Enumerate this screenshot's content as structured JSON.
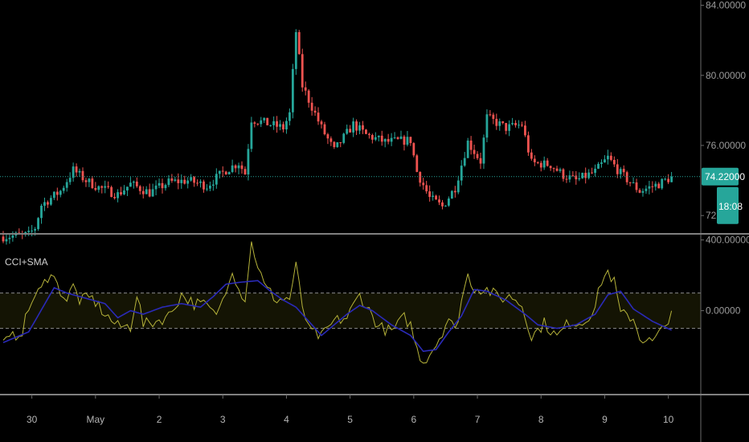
{
  "colors": {
    "background": "#000000",
    "bullish": "#26a69a",
    "bearish": "#ef5350",
    "cci_line": "#b5b23a",
    "sma_line": "#2a2ab8",
    "band_fill": "#141404",
    "price_line": "#26a69a",
    "divider": "#808080"
  },
  "indicator_title": "CCI+SMA",
  "price_badge": {
    "price": "74.22000",
    "countdown": "18:08"
  },
  "chart_data": [
    {
      "type": "candlestick",
      "title": "",
      "price_axis": {
        "min": 71.0,
        "max": 84.3,
        "ticks": [
          {
            "value": 84,
            "label": "84.00000"
          },
          {
            "value": 80,
            "label": "80.00000"
          },
          {
            "value": 76,
            "label": "76.00000"
          },
          {
            "value": 72,
            "label": "72.0"
          }
        ]
      },
      "last_price": 74.22,
      "anchors": [
        [
          0,
          70.8
        ],
        [
          8,
          70.9
        ],
        [
          10,
          71.3
        ],
        [
          12,
          72.6
        ],
        [
          18,
          73.4
        ],
        [
          22,
          74.6
        ],
        [
          26,
          74.0
        ],
        [
          30,
          73.6
        ],
        [
          36,
          73.2
        ],
        [
          40,
          73.8
        ],
        [
          46,
          73.3
        ],
        [
          52,
          73.9
        ],
        [
          58,
          74.0
        ],
        [
          64,
          73.7
        ],
        [
          70,
          74.6
        ],
        [
          74,
          75.0
        ],
        [
          76,
          74.4
        ],
        [
          78,
          77.5
        ],
        [
          84,
          77.2
        ],
        [
          88,
          77.0
        ],
        [
          90,
          77.8
        ],
        [
          92,
          82.5
        ],
        [
          94,
          79.4
        ],
        [
          100,
          77.0
        ],
        [
          104,
          75.7
        ],
        [
          110,
          77.2
        ],
        [
          114,
          76.6
        ],
        [
          120,
          76.2
        ],
        [
          128,
          76.3
        ],
        [
          130,
          74.5
        ],
        [
          134,
          73.0
        ],
        [
          138,
          72.5
        ],
        [
          142,
          73.6
        ],
        [
          146,
          76.2
        ],
        [
          150,
          75.1
        ],
        [
          152,
          77.6
        ],
        [
          158,
          77.0
        ],
        [
          163,
          77.2
        ],
        [
          166,
          75.0
        ],
        [
          172,
          74.9
        ],
        [
          176,
          74.3
        ],
        [
          180,
          74.0
        ],
        [
          186,
          74.5
        ],
        [
          190,
          75.3
        ],
        [
          194,
          74.4
        ],
        [
          200,
          73.4
        ],
        [
          206,
          73.8
        ],
        [
          210,
          74.2
        ]
      ]
    },
    {
      "type": "line",
      "title": "CCI+SMA",
      "y_axis": {
        "min": -470,
        "max": 430,
        "ticks": [
          {
            "value": 400,
            "label": "400.00000"
          },
          {
            "value": 0,
            "label": "0.00000"
          }
        ]
      },
      "bands": {
        "upper": 100,
        "lower": -100
      },
      "cci_anchors": [
        [
          0,
          -190
        ],
        [
          6,
          -110
        ],
        [
          9,
          60
        ],
        [
          12,
          120
        ],
        [
          15,
          230
        ],
        [
          17,
          140
        ],
        [
          20,
          60
        ],
        [
          22,
          140
        ],
        [
          24,
          60
        ],
        [
          28,
          70
        ],
        [
          32,
          -20
        ],
        [
          36,
          -90
        ],
        [
          40,
          -90
        ],
        [
          42,
          100
        ],
        [
          44,
          -80
        ],
        [
          48,
          -60
        ],
        [
          52,
          -30
        ],
        [
          56,
          90
        ],
        [
          60,
          40
        ],
        [
          64,
          30
        ],
        [
          66,
          -20
        ],
        [
          68,
          10
        ],
        [
          70,
          130
        ],
        [
          72,
          240
        ],
        [
          74,
          120
        ],
        [
          76,
          70
        ],
        [
          78,
          380
        ],
        [
          82,
          140
        ],
        [
          86,
          60
        ],
        [
          90,
          70
        ],
        [
          92,
          250
        ],
        [
          94,
          30
        ],
        [
          96,
          -110
        ],
        [
          100,
          -150
        ],
        [
          104,
          -60
        ],
        [
          108,
          -40
        ],
        [
          112,
          90
        ],
        [
          114,
          30
        ],
        [
          118,
          -90
        ],
        [
          122,
          -120
        ],
        [
          126,
          -40
        ],
        [
          128,
          -80
        ],
        [
          130,
          -220
        ],
        [
          132,
          -290
        ],
        [
          136,
          -190
        ],
        [
          140,
          -40
        ],
        [
          142,
          -120
        ],
        [
          144,
          60
        ],
        [
          146,
          200
        ],
        [
          148,
          130
        ],
        [
          152,
          120
        ],
        [
          156,
          70
        ],
        [
          160,
          80
        ],
        [
          163,
          30
        ],
        [
          165,
          -80
        ],
        [
          166,
          -150
        ],
        [
          170,
          -70
        ],
        [
          174,
          -150
        ],
        [
          178,
          -60
        ],
        [
          182,
          -70
        ],
        [
          186,
          20
        ],
        [
          188,
          170
        ],
        [
          190,
          220
        ],
        [
          192,
          160
        ],
        [
          194,
          -20
        ],
        [
          198,
          -40
        ],
        [
          200,
          -150
        ],
        [
          204,
          -180
        ],
        [
          208,
          -90
        ],
        [
          210,
          10
        ]
      ],
      "sma_anchors": [
        [
          0,
          -180
        ],
        [
          8,
          -120
        ],
        [
          16,
          130
        ],
        [
          20,
          100
        ],
        [
          26,
          70
        ],
        [
          32,
          40
        ],
        [
          36,
          -40
        ],
        [
          40,
          0
        ],
        [
          44,
          -20
        ],
        [
          50,
          20
        ],
        [
          56,
          40
        ],
        [
          62,
          20
        ],
        [
          66,
          80
        ],
        [
          70,
          150
        ],
        [
          74,
          160
        ],
        [
          80,
          170
        ],
        [
          84,
          110
        ],
        [
          88,
          60
        ],
        [
          92,
          20
        ],
        [
          96,
          -60
        ],
        [
          100,
          -140
        ],
        [
          104,
          -80
        ],
        [
          108,
          -20
        ],
        [
          112,
          30
        ],
        [
          116,
          0
        ],
        [
          122,
          -80
        ],
        [
          128,
          -140
        ],
        [
          132,
          -230
        ],
        [
          136,
          -220
        ],
        [
          140,
          -120
        ],
        [
          144,
          -30
        ],
        [
          148,
          120
        ],
        [
          152,
          110
        ],
        [
          158,
          60
        ],
        [
          164,
          -20
        ],
        [
          168,
          -80
        ],
        [
          174,
          -100
        ],
        [
          180,
          -80
        ],
        [
          186,
          -20
        ],
        [
          190,
          90
        ],
        [
          194,
          110
        ],
        [
          198,
          10
        ],
        [
          204,
          -60
        ],
        [
          210,
          -110
        ]
      ]
    }
  ],
  "time_axis": {
    "labels": [
      {
        "text": "30",
        "bar": 9
      },
      {
        "text": "May",
        "bar": 29
      },
      {
        "text": "2",
        "bar": 49
      },
      {
        "text": "3",
        "bar": 69
      },
      {
        "text": "4",
        "bar": 89
      },
      {
        "text": "5",
        "bar": 109
      },
      {
        "text": "6",
        "bar": 129
      },
      {
        "text": "7",
        "bar": 149
      },
      {
        "text": "8",
        "bar": 169
      },
      {
        "text": "9",
        "bar": 189
      },
      {
        "text": "10",
        "bar": 209
      }
    ]
  }
}
